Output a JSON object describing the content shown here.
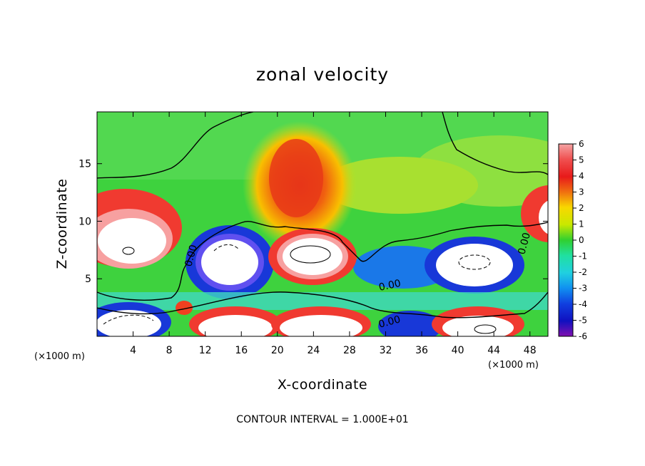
{
  "chart_data": {
    "type": "heatmap",
    "title": "zonal velocity",
    "xlabel": "X-coordinate",
    "ylabel": "Z-coordinate",
    "x_unit_label_left": "(×1000 m)",
    "x_unit_label_right": "(×1000 m)",
    "xlim": [
      0,
      50
    ],
    "ylim": [
      0,
      19.5
    ],
    "x_ticks": [
      4,
      8,
      12,
      16,
      20,
      24,
      28,
      32,
      36,
      40,
      44,
      48
    ],
    "y_ticks": [
      5,
      10,
      15
    ],
    "colorbar": {
      "min": -6,
      "max": 6,
      "ticks": [
        6,
        5,
        4,
        3,
        2,
        1,
        0,
        -1,
        -2,
        -3,
        -4,
        -5,
        -6
      ]
    },
    "contour_labels": [
      "0.00",
      "0.00",
      "0.00",
      "0.00"
    ],
    "note": "CONTOUR INTERVAL = 1.000E+01"
  }
}
